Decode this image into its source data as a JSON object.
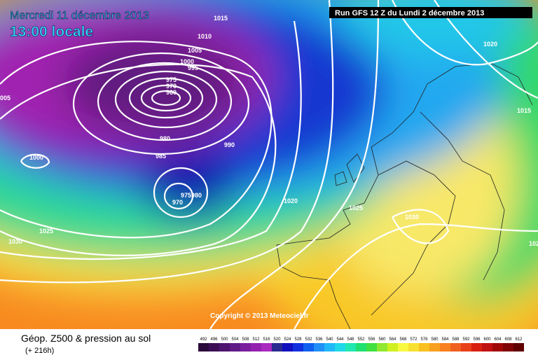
{
  "header": {
    "date": "Mercredi 11 décembre 2013",
    "time": "13:00 locale",
    "run": "Run GFS 12 Z du Lundi 2 décembre 2013"
  },
  "copyright": "Copyright © 2013 Meteociel.fr",
  "footer": {
    "title": "Géop. Z500 & pression au sol",
    "lead": "(+ 216h)"
  },
  "isobar_labels": [
    "1015",
    "1010",
    "1005",
    "1000",
    "995",
    "975",
    "970",
    "960",
    "005",
    "980",
    "985",
    "990",
    "1000",
    "970",
    "975980",
    "1020",
    "1025",
    "1030",
    "1025",
    "1030",
    "1020",
    "1015",
    "102"
  ],
  "legend": {
    "items": [
      {
        "value": 492,
        "color": "#2a0a3a"
      },
      {
        "value": 496,
        "color": "#3c0f55"
      },
      {
        "value": 500,
        "color": "#4e1470"
      },
      {
        "value": 504,
        "color": "#601a88"
      },
      {
        "value": 508,
        "color": "#7a1e9e"
      },
      {
        "value": 512,
        "color": "#9420b0"
      },
      {
        "value": 516,
        "color": "#a828c0"
      },
      {
        "value": 520,
        "color": "#2a2a90"
      },
      {
        "value": 524,
        "color": "#1010c0"
      },
      {
        "value": 528,
        "color": "#1030e0"
      },
      {
        "value": 532,
        "color": "#1060f0"
      },
      {
        "value": 536,
        "color": "#2090f8"
      },
      {
        "value": 540,
        "color": "#20b8f8"
      },
      {
        "value": 544,
        "color": "#20d8e8"
      },
      {
        "value": 548,
        "color": "#20e8b0"
      },
      {
        "value": 552,
        "color": "#20e070"
      },
      {
        "value": 556,
        "color": "#40e040"
      },
      {
        "value": 560,
        "color": "#90e830"
      },
      {
        "value": 564,
        "color": "#d0f020"
      },
      {
        "value": 568,
        "color": "#f8f840"
      },
      {
        "value": 572,
        "color": "#f8e030"
      },
      {
        "value": 576,
        "color": "#f8c020"
      },
      {
        "value": 580,
        "color": "#f8a020"
      },
      {
        "value": 584,
        "color": "#f88020"
      },
      {
        "value": 588,
        "color": "#f06020"
      },
      {
        "value": 592,
        "color": "#e84018"
      },
      {
        "value": 596,
        "color": "#d82010"
      },
      {
        "value": 600,
        "color": "#c01010"
      },
      {
        "value": 604,
        "color": "#a00808"
      },
      {
        "value": 608,
        "color": "#800404"
      },
      {
        "value": 612,
        "color": "#600000"
      }
    ]
  }
}
